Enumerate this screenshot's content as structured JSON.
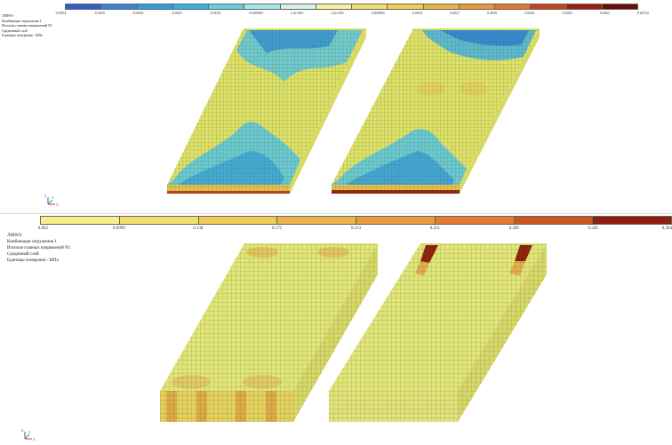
{
  "top": {
    "legend_colors": [
      "#2f5fc4",
      "#3b82d6",
      "#2f9dda",
      "#2fb4dd",
      "#62cde4",
      "#a7e6e6",
      "#d7f2e6",
      "#f4f3a0",
      "#f1e06e",
      "#efcd52",
      "#eab447",
      "#e89839",
      "#e0782a",
      "#c2461b",
      "#98200e",
      "#6a0b05"
    ],
    "ticks": [
      "-0.0054",
      "-0.0045",
      "-0.0036",
      "-0.0027",
      "-0.0018",
      "-0.000903",
      "2.4e-005",
      "2.4e-005",
      "0.000903",
      "0.0018",
      "0.0027",
      "0.0036",
      "0.0045",
      "0.0054",
      "0.0063",
      "0.00722"
    ],
    "info": [
      "ЛИРА®",
      "Комбинация загружения 1",
      "Изополя главных напряжений N1",
      "Срединный слой",
      "Единицы измерения - МПа"
    ]
  },
  "bottom": {
    "legend_colors": [
      "#f6ee8a",
      "#f3df6b",
      "#f0cb55",
      "#ecb44a",
      "#e89a3c",
      "#e07a2e",
      "#c9561f",
      "#8e1f0c"
    ],
    "ticks": [
      "0.062",
      "0.0999",
      "0.138",
      "0.175",
      "0.213",
      "0.251",
      "0.289",
      "0.326",
      "0.364"
    ],
    "info": [
      "ЛИРА®",
      "Комбинация загружения 1",
      "Изополя главных напряжений N1",
      "Срединный слой",
      "Единицы измерения - МПа"
    ]
  },
  "axis_labels": {
    "z": "Z",
    "y": "Y",
    "x": "X"
  }
}
